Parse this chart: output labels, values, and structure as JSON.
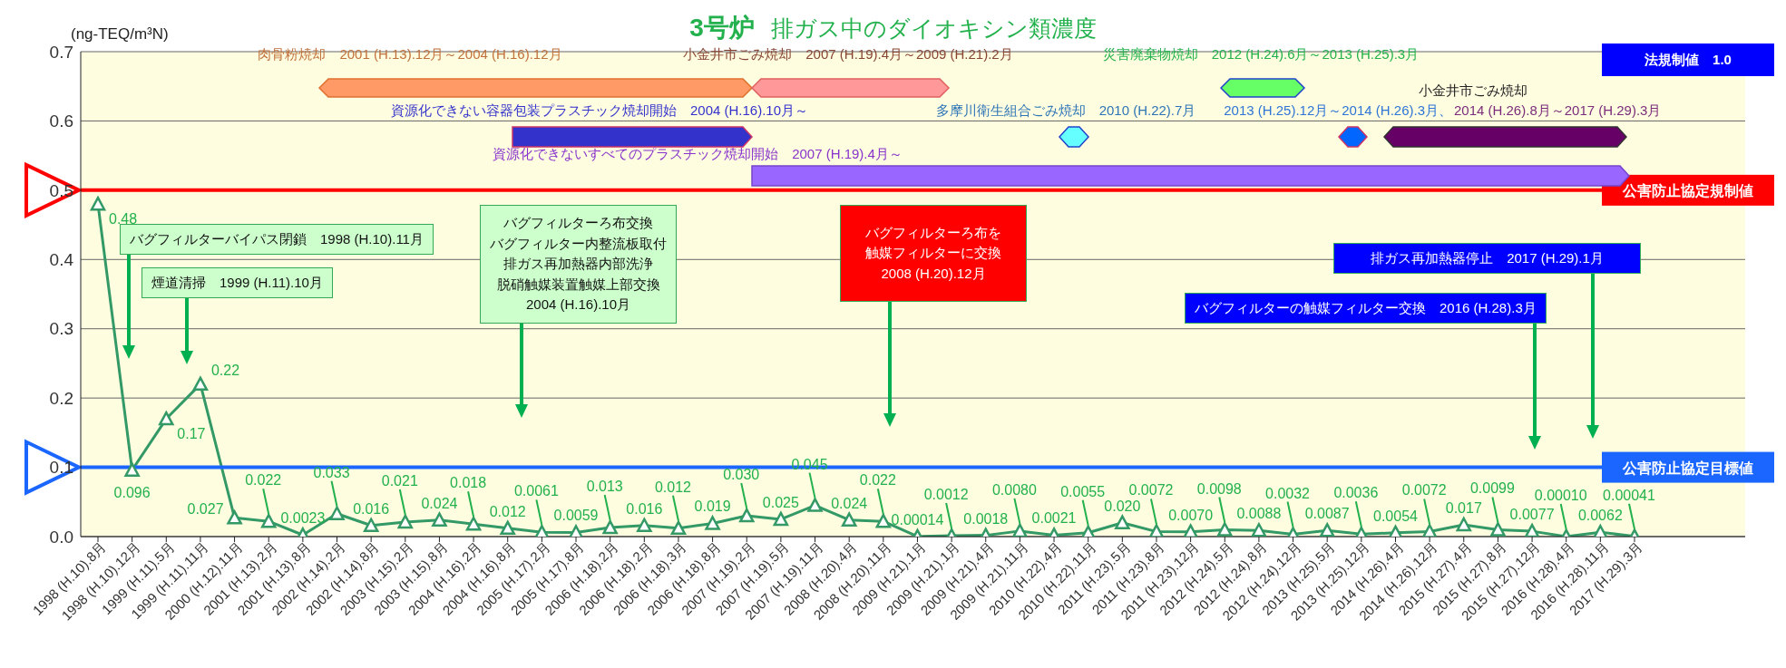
{
  "chart_data": {
    "type": "line",
    "title": "3号炉 排ガス中のダイオキシン類濃度",
    "ylabel": "(ng-TEQ/m³N)",
    "categories": [
      "1998 (H.10).8月",
      "1998 (H.10).12月",
      "1999 (H.11).5月",
      "1999 (H.11).11月",
      "2000 (H.12).11月",
      "2001 (H.13).2月",
      "2001 (H.13).8月",
      "2002 (H.14).2月",
      "2002 (H.14).8月",
      "2003 (H.15).2月",
      "2003 (H.15).8月",
      "2004 (H.16).2月",
      "2004 (H.16).8月",
      "2005 (H.17).2月",
      "2005 (H.17).8月",
      "2006 (H.18).2月",
      "2006 (H.18).2月",
      "2006 (H.18).3月",
      "2006 (H.18).8月",
      "2007 (H.19).2月",
      "2007 (H.19).5月",
      "2007 (H.19).11月",
      "2008 (H.20).4月",
      "2008 (H.20).11月",
      "2009 (H.21).1月",
      "2009 (H.21).1月",
      "2009 (H.21).4月",
      "2009 (H.21).11月",
      "2010 (H.22).4月",
      "2010 (H.22).11月",
      "2011 (H.23).5月",
      "2011 (H.23).8月",
      "2011 (H.23).12月",
      "2012 (H.24).5月",
      "2012 (H.24).8月",
      "2012 (H.24).12月",
      "2013 (H.25).5月",
      "2013 (H.25).12月",
      "2014 (H.26).4月",
      "2014 (H.26).12月",
      "2015 (H.27).4月",
      "2015 (H.27).8月",
      "2015 (H.27).12月",
      "2016 (H.28).4月",
      "2016 (H.28).11月",
      "2017 (H.29).3月"
    ],
    "values": [
      0.48,
      0.096,
      0.17,
      0.22,
      0.027,
      0.022,
      0.0023,
      0.033,
      0.016,
      0.021,
      0.024,
      0.018,
      0.012,
      0.0061,
      0.0059,
      0.013,
      0.016,
      0.012,
      0.019,
      0.03,
      0.025,
      0.045,
      0.024,
      0.022,
      0.00014,
      0.0012,
      0.0018,
      0.008,
      0.0021,
      0.0055,
      0.02,
      0.0072,
      0.007,
      0.0098,
      0.0088,
      0.0032,
      0.0087,
      0.0036,
      0.0054,
      0.0072,
      0.017,
      0.0099,
      0.0077,
      0.0001,
      0.0062,
      0.00041
    ],
    "value_labels": [
      "0.48",
      "0.096",
      "0.17",
      "0.22",
      "0.027",
      "0.022",
      "0.0023",
      "0.033",
      "0.016",
      "0.021",
      "0.024",
      "0.018",
      "0.012",
      "0.0061",
      "0.0059",
      "0.013",
      "0.016",
      "0.012",
      "0.019",
      "0.030",
      "0.025",
      "0.045",
      "0.024",
      "0.022",
      "0.00014",
      "0.0012",
      "0.0018",
      "0.0080",
      "0.0021",
      "0.0055",
      "0.020",
      "0.0072",
      "0.0070",
      "0.0098",
      "0.0088",
      "0.0032",
      "0.0087",
      "0.0036",
      "0.0054",
      "0.0072",
      "0.017",
      "0.0099",
      "0.0077",
      "0.00010",
      "0.0062",
      "0.00041"
    ],
    "color": "#339966",
    "marker": "triangle",
    "ylim": [
      0,
      0.7
    ],
    "yticks": [
      {
        "value": 0,
        "label": "0.0"
      },
      0.1,
      0.2,
      0.3,
      0.4,
      0.5,
      0.6,
      0.7
    ],
    "grid": "y",
    "ref_lines": [
      {
        "axis": "y",
        "value": 0.5,
        "label": "公害防止協定規制値",
        "color": "#ff0000"
      },
      {
        "axis": "y",
        "value": 0.1,
        "label": "公害防止協定目標値",
        "color": "#1a66ff"
      }
    ],
    "annotations": [
      "肉骨粉焼却　2001 (H.13).12月～2004 (H.16).12月",
      "小金井市ごみ焼却　2007 (H.19).4月～2009 (H.21).2月",
      "災害廃棄物焼却　2012 (H.24).6月～2013 (H.25).3月",
      "資源化できない容器包装プラスチック焼却開始　2004 (H.16).10月～",
      "多摩川衛生組合ごみ焼却　2010 (H.22).7月",
      "小金井市ごみ焼却",
      "2013 (H.25).12月～2014 (H.26).3月、",
      "2014 (H.26).8月～2017 (H.29).3月",
      "資源化できないすべてのプラスチック焼却開始　2007 (H.19).4月～",
      "バグフィルターバイパス閉鎖　1998 (H.10).11月",
      "煙道清掃　1999 (H.11).10月",
      "バグフィルターろ布交換",
      "バグフィルター内整流板取付",
      "排ガス再加熱器内部洗浄",
      "脱硝触媒装置触媒上部交換",
      "2004 (H.16).10月",
      "バグフィルターろ布を",
      "触媒フィルターに交換",
      "2008 (H.20).12月",
      "排ガス再加熱器停止　2017 (H.29).1月",
      "バグフィルターの触媒フィルター交換　2016 (H.28).3月",
      "法規制値　1.0"
    ]
  }
}
